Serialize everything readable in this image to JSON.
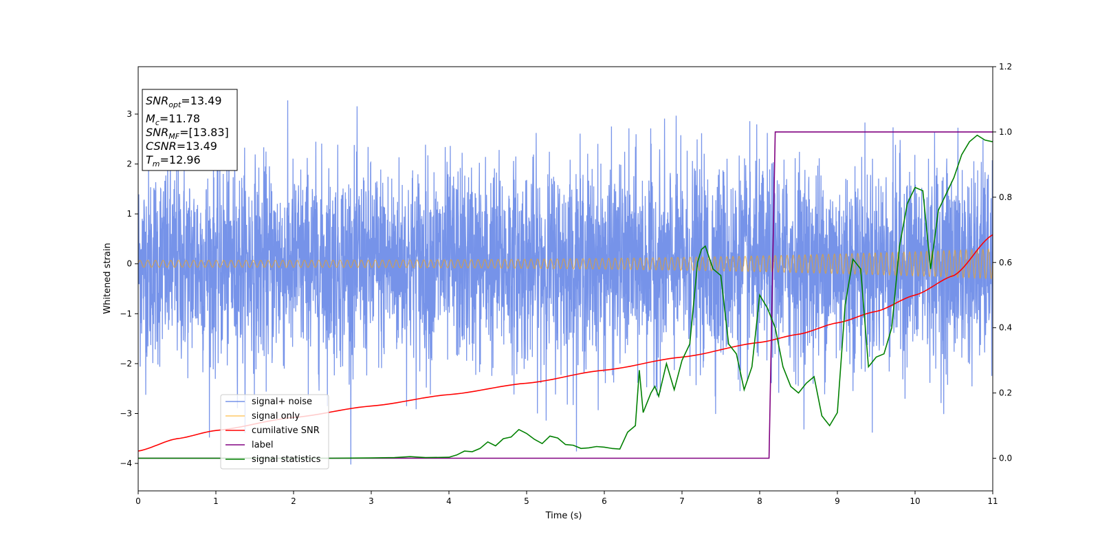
{
  "chart_data": {
    "type": "line",
    "xlabel": "Time (s)",
    "ylabel": "Whitened strain",
    "xlim": [
      0,
      11
    ],
    "ylim_left": [
      -4.55,
      3.95
    ],
    "ylim_right": [
      -0.1,
      1.2
    ],
    "xticks": [
      "0",
      "1",
      "2",
      "3",
      "4",
      "5",
      "6",
      "7",
      "8",
      "9",
      "10",
      "11"
    ],
    "yticks_left": [
      "−4",
      "−3",
      "−2",
      "−1",
      "0",
      "1",
      "2",
      "3"
    ],
    "yticks_right": [
      "0.0",
      "0.2",
      "0.4",
      "0.6",
      "0.8",
      "1.0",
      "1.2"
    ],
    "grid": false,
    "legend_position": "lower-left",
    "annotation": {
      "snr_opt": {
        "main": "SNR",
        "sub": "opt",
        "value": "=13.49"
      },
      "mc": {
        "main": "M",
        "sub": "c",
        "value": "=11.78"
      },
      "snr_mf": {
        "main": "SNR",
        "sub": "MF",
        "value": "=[13.83]"
      },
      "csnr": {
        "main": "CSNR",
        "value": "=13.49"
      },
      "tm": {
        "main": "T",
        "sub": "m",
        "value": "=12.96"
      }
    },
    "series": [
      {
        "name": "signal+ noise",
        "axis": "left",
        "color": "#4169e1",
        "description_of_shape": "dense whitened noise, roughly N(0,1), spikes to about 3.6 and -4.2",
        "noise_std": 1.0,
        "approx_range": [
          -4.2,
          3.6
        ]
      },
      {
        "name": "signal only",
        "axis": "left",
        "color": "#ffa500",
        "chirp_amplitude_start": 0.07,
        "chirp_amplitude_end": 0.3,
        "chirp_freq_start_hz": 10,
        "chirp_freq_end_hz": 14
      },
      {
        "name": "cumilative SNR",
        "axis": "right",
        "color": "#ff0000",
        "points": [
          [
            0,
            0.022
          ],
          [
            0.5,
            0.06
          ],
          [
            1,
            0.085
          ],
          [
            2,
            0.125
          ],
          [
            3,
            0.16
          ],
          [
            4,
            0.195
          ],
          [
            5,
            0.23
          ],
          [
            6,
            0.27
          ],
          [
            7,
            0.31
          ],
          [
            8,
            0.355
          ],
          [
            8.5,
            0.38
          ],
          [
            9,
            0.415
          ],
          [
            9.5,
            0.45
          ],
          [
            10,
            0.5
          ],
          [
            10.5,
            0.56
          ],
          [
            11,
            0.685
          ]
        ]
      },
      {
        "name": "label",
        "axis": "right",
        "color": "#800080",
        "points": [
          [
            0,
            0.0
          ],
          [
            8.12,
            0.0
          ],
          [
            8.2,
            1.0
          ],
          [
            11,
            1.0
          ]
        ]
      },
      {
        "name": "signal statistics",
        "axis": "right",
        "color": "#008000",
        "points": [
          [
            0,
            0.0
          ],
          [
            0.5,
            0.0
          ],
          [
            1,
            0.0
          ],
          [
            1.5,
            0.0
          ],
          [
            2,
            0.0
          ],
          [
            2.5,
            0.0
          ],
          [
            3,
            0.001
          ],
          [
            3.3,
            0.002
          ],
          [
            3.5,
            0.005
          ],
          [
            3.7,
            0.002
          ],
          [
            4,
            0.003
          ],
          [
            4.1,
            0.01
          ],
          [
            4.2,
            0.022
          ],
          [
            4.3,
            0.02
          ],
          [
            4.4,
            0.03
          ],
          [
            4.5,
            0.05
          ],
          [
            4.6,
            0.038
          ],
          [
            4.7,
            0.06
          ],
          [
            4.8,
            0.065
          ],
          [
            4.9,
            0.088
          ],
          [
            5,
            0.076
          ],
          [
            5.1,
            0.058
          ],
          [
            5.2,
            0.045
          ],
          [
            5.3,
            0.068
          ],
          [
            5.4,
            0.062
          ],
          [
            5.5,
            0.042
          ],
          [
            5.6,
            0.04
          ],
          [
            5.7,
            0.03
          ],
          [
            5.8,
            0.032
          ],
          [
            5.9,
            0.036
          ],
          [
            6,
            0.034
          ],
          [
            6.1,
            0.03
          ],
          [
            6.2,
            0.028
          ],
          [
            6.3,
            0.08
          ],
          [
            6.4,
            0.1
          ],
          [
            6.45,
            0.27
          ],
          [
            6.5,
            0.14
          ],
          [
            6.55,
            0.17
          ],
          [
            6.6,
            0.2
          ],
          [
            6.65,
            0.22
          ],
          [
            6.7,
            0.19
          ],
          [
            6.8,
            0.29
          ],
          [
            6.9,
            0.21
          ],
          [
            7.0,
            0.3
          ],
          [
            7.1,
            0.35
          ],
          [
            7.2,
            0.6
          ],
          [
            7.25,
            0.64
          ],
          [
            7.3,
            0.65
          ],
          [
            7.4,
            0.58
          ],
          [
            7.5,
            0.56
          ],
          [
            7.6,
            0.35
          ],
          [
            7.7,
            0.32
          ],
          [
            7.8,
            0.21
          ],
          [
            7.9,
            0.28
          ],
          [
            8.0,
            0.5
          ],
          [
            8.1,
            0.46
          ],
          [
            8.2,
            0.4
          ],
          [
            8.3,
            0.28
          ],
          [
            8.4,
            0.22
          ],
          [
            8.5,
            0.2
          ],
          [
            8.6,
            0.23
          ],
          [
            8.7,
            0.25
          ],
          [
            8.8,
            0.13
          ],
          [
            8.9,
            0.1
          ],
          [
            9.0,
            0.14
          ],
          [
            9.1,
            0.47
          ],
          [
            9.2,
            0.61
          ],
          [
            9.3,
            0.58
          ],
          [
            9.4,
            0.28
          ],
          [
            9.5,
            0.31
          ],
          [
            9.6,
            0.32
          ],
          [
            9.7,
            0.4
          ],
          [
            9.8,
            0.65
          ],
          [
            9.9,
            0.78
          ],
          [
            10.0,
            0.83
          ],
          [
            10.1,
            0.82
          ],
          [
            10.2,
            0.58
          ],
          [
            10.3,
            0.76
          ],
          [
            10.4,
            0.81
          ],
          [
            10.5,
            0.86
          ],
          [
            10.6,
            0.93
          ],
          [
            10.7,
            0.97
          ],
          [
            10.8,
            0.99
          ],
          [
            10.9,
            0.975
          ],
          [
            11,
            0.97
          ]
        ]
      }
    ]
  }
}
